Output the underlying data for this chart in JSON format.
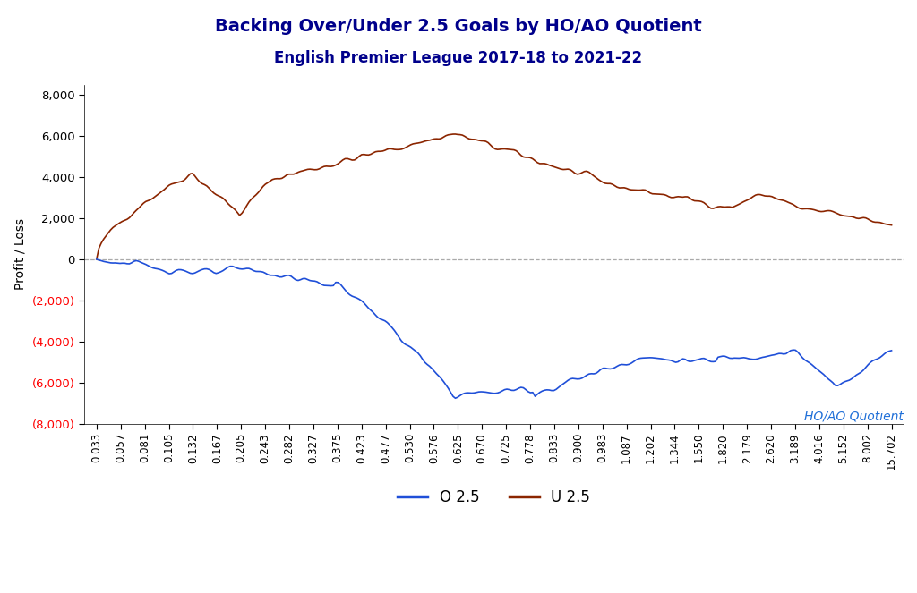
{
  "title": "Backing Over/Under 2.5 Goals by HO/AO Quotient",
  "subtitle": "English Premier League 2017-18 to 2021-22",
  "title_color": "#00008B",
  "xlabel": "HO/AO Quotient",
  "ylabel": "Profit / Loss",
  "xlabel_color": "#1F6FD8",
  "ylabel_color": "#000000",
  "ylim": [
    -8000,
    8500
  ],
  "yticks": [
    -8000,
    -6000,
    -4000,
    -2000,
    0,
    2000,
    4000,
    6000,
    8000
  ],
  "x_labels": [
    "0.033",
    "0.057",
    "0.081",
    "0.105",
    "0.132",
    "0.167",
    "0.205",
    "0.243",
    "0.282",
    "0.327",
    "0.375",
    "0.423",
    "0.477",
    "0.530",
    "0.576",
    "0.625",
    "0.670",
    "0.725",
    "0.778",
    "0.833",
    "0.900",
    "0.983",
    "1.087",
    "1.202",
    "1.344",
    "1.550",
    "1.820",
    "2.179",
    "2.620",
    "3.189",
    "4.016",
    "5.152",
    "8.002",
    "15.702"
  ],
  "line_blue_color": "#1F4FD8",
  "line_brown_color": "#8B2500",
  "legend_labels": [
    "O 2.5",
    "U 2.5"
  ],
  "background_color": "#FFFFFF",
  "grid_color": "#AAAAAA",
  "n_points": 340
}
